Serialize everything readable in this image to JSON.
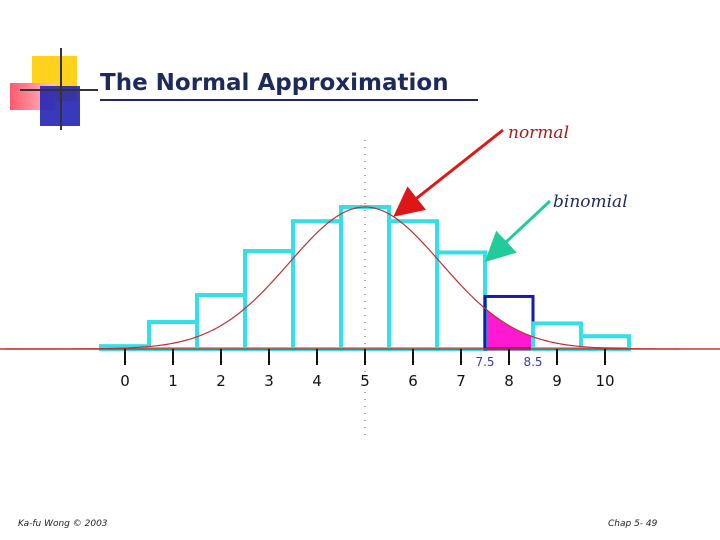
{
  "slide": {
    "title": "The Normal Approximation",
    "footer_left": "Ka-fu Wong © 2003",
    "footer_right": "Chap 5- 49"
  },
  "colors": {
    "title": "#1f2a5c",
    "deco_yellow": "#ffd21e",
    "deco_red": "#ff5a6e",
    "deco_blue": "#2424b4",
    "bars": "#33e0e6",
    "highlight_bar": "#1a1aa8",
    "normal_curve": "#c03030",
    "shade": "#ff19d2",
    "normal_arrow": "#e01515",
    "binomial_arrow": "#22cc99",
    "axis": "#cc3333"
  },
  "chart_data": {
    "type": "bar",
    "title": "",
    "categories": [
      "0",
      "1",
      "2",
      "3",
      "4",
      "5",
      "6",
      "7",
      "8",
      "9",
      "10"
    ],
    "series": [
      {
        "name": "binomial",
        "values": [
          0.2,
          1.9,
          3.8,
          6.9,
          9.0,
          10.0,
          9.0,
          6.8,
          3.7,
          1.8,
          0.9
        ]
      }
    ],
    "normal_curve": {
      "mean": 5,
      "sd": 1.58,
      "peak": 10.0
    },
    "highlight": {
      "category": "8",
      "lower": 7.5,
      "upper": 8.5,
      "lower_label": "7.5",
      "upper_label": "8.5"
    },
    "shaded_from": 7.5,
    "annotations": {
      "normal": "normal",
      "binomial": "binomial"
    },
    "xlim": [
      -2.5,
      12.5
    ],
    "ylim": [
      0,
      10.0
    ],
    "xlabel": "",
    "ylabel": ""
  }
}
